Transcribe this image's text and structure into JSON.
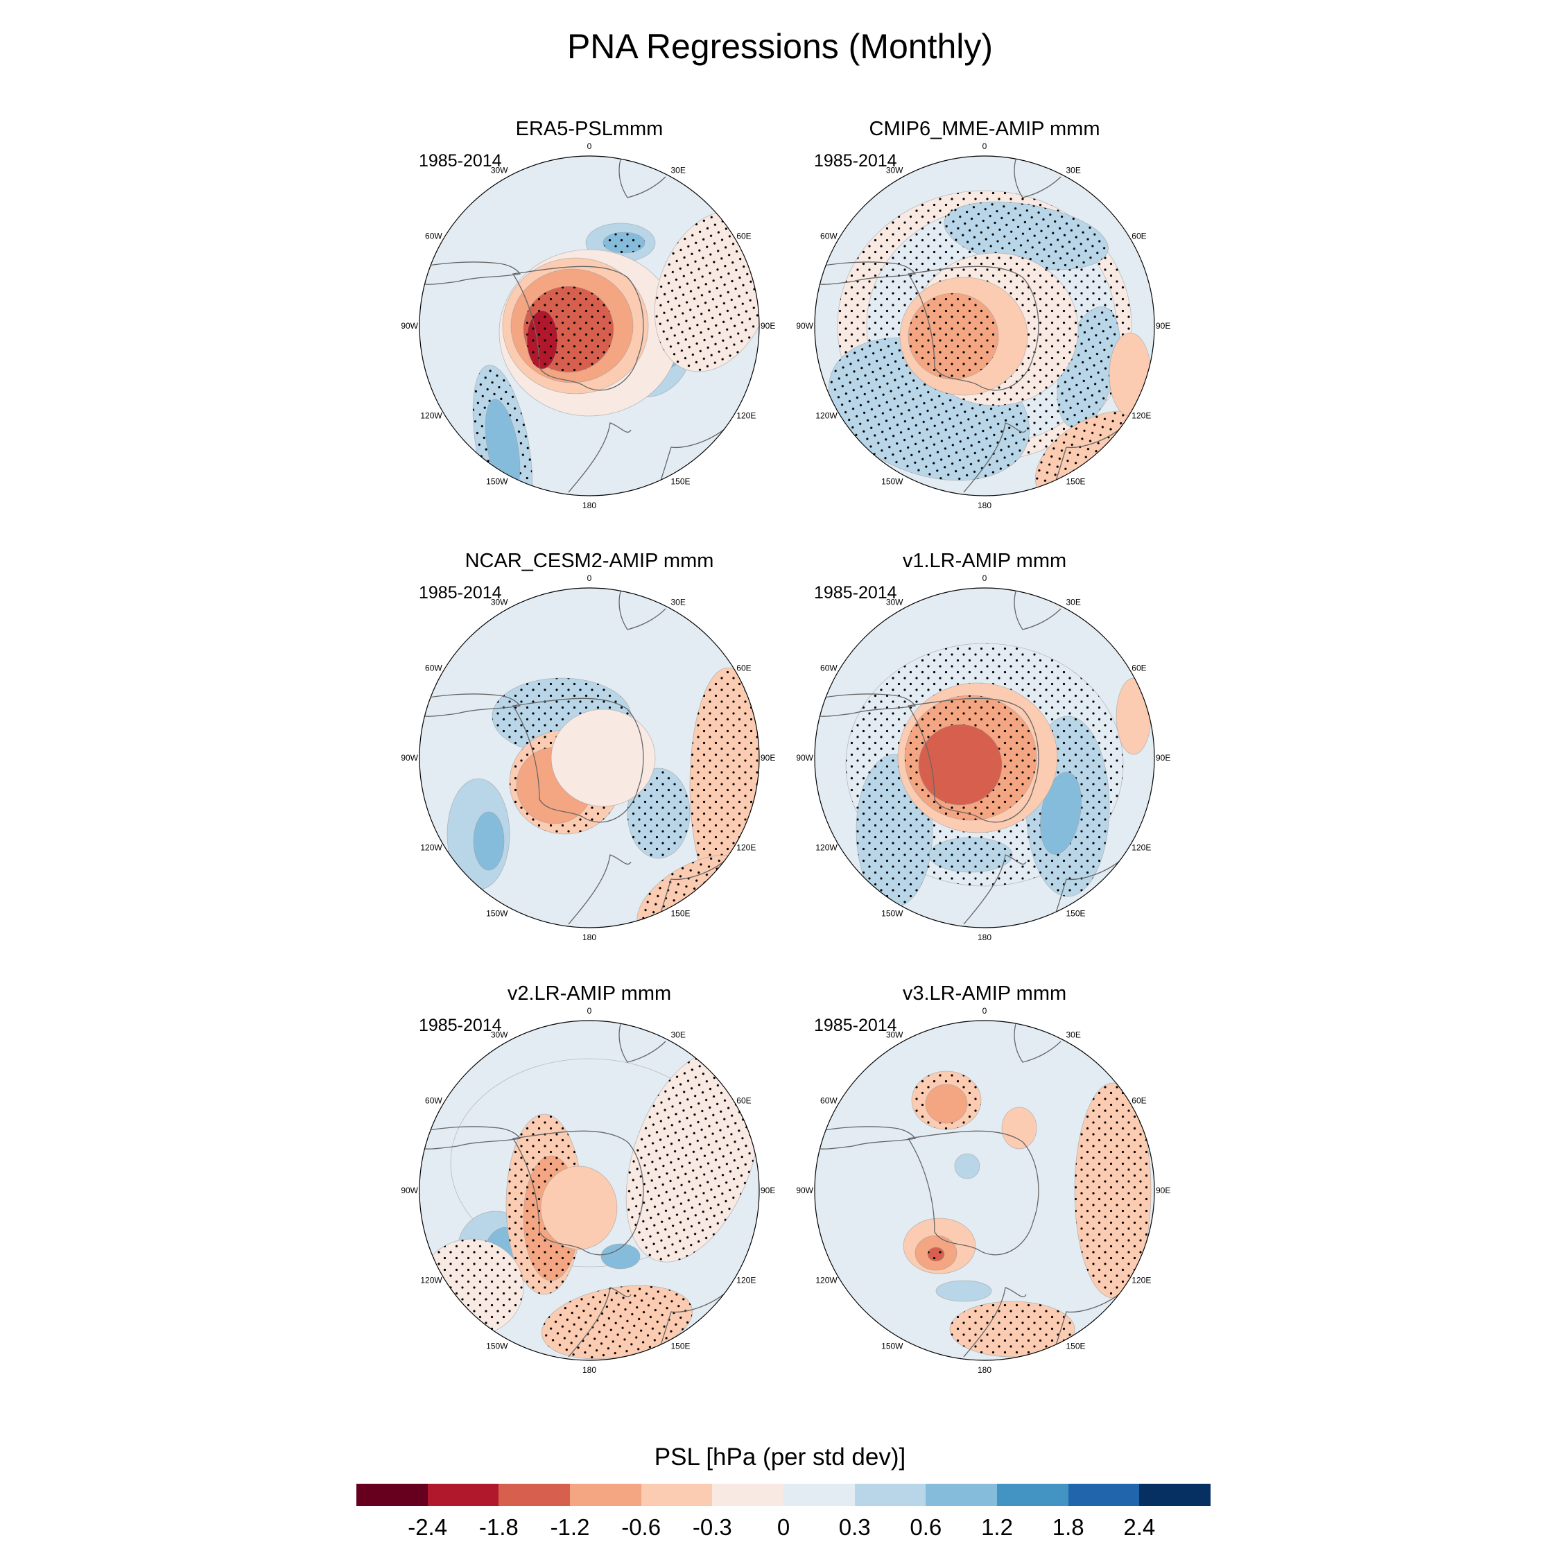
{
  "title": "PNA Regressions (Monthly)",
  "period": "1985-2014",
  "lon_labels": [
    "0",
    "30E",
    "60E",
    "90E",
    "120E",
    "150E",
    "180",
    "150W",
    "120W",
    "90W",
    "60W",
    "30W"
  ],
  "panels": [
    {
      "title": "ERA5-PSLmmm",
      "pattern": "era5"
    },
    {
      "title": "CMIP6_MME-AMIP  mmm",
      "pattern": "cmip6"
    },
    {
      "title": "NCAR_CESM2-AMIP  mmm",
      "pattern": "cesm2"
    },
    {
      "title": "v1.LR-AMIP  mmm",
      "pattern": "v1"
    },
    {
      "title": "v2.LR-AMIP  mmm",
      "pattern": "v2"
    },
    {
      "title": "v3.LR-AMIP  mmm",
      "pattern": "v3"
    }
  ],
  "colorbar": {
    "title": "PSL [hPa (per std dev)]",
    "colors": [
      "#67001f",
      "#b2182b",
      "#d6604d",
      "#f4a582",
      "#fbccb2",
      "#f8e9e3",
      "#e3ecf3",
      "#b9d6e8",
      "#86bcdb",
      "#4393c3",
      "#2166ac",
      "#053061"
    ],
    "labels": [
      "-2.4",
      "-1.8",
      "-1.2",
      "-0.6",
      "-0.3",
      "0",
      "0.3",
      "0.6",
      "1.2",
      "1.8",
      "2.4"
    ]
  }
}
